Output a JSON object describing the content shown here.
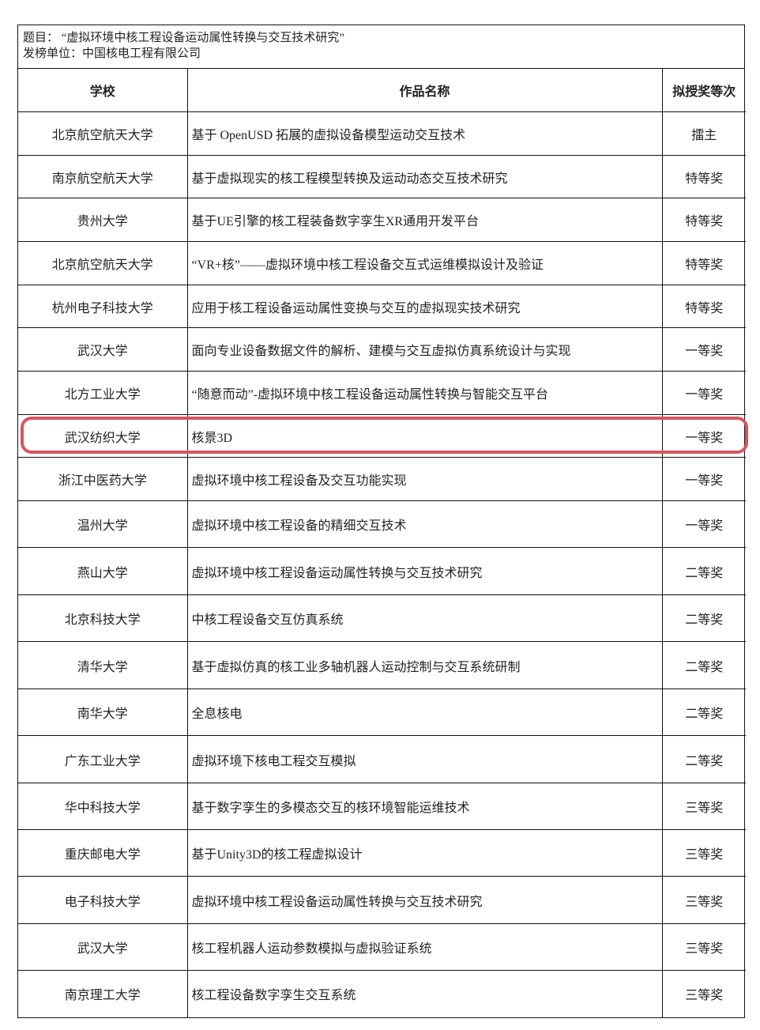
{
  "header": {
    "topic": "题目：  “虚拟环境中核工程设备运动属性转换与交互技术研究”",
    "issuer": "发榜单位：中国核电工程有限公司"
  },
  "columns": [
    "学校",
    "作品名称",
    "拟授奖等次"
  ],
  "highlight_color": "#d9535e",
  "highlighted_row": 7,
  "rows": [
    {
      "school": "北京航空航天大学",
      "work": "基于 OpenUSD 拓展的虚拟设备模型运动交互技术",
      "award": "擂主"
    },
    {
      "school": "南京航空航天大学",
      "work": "基于虚拟现实的核工程模型转换及运动动态交互技术研究",
      "award": "特等奖"
    },
    {
      "school": "贵州大学",
      "work": "基于UE引擎的核工程装备数字孪生XR通用开发平台",
      "award": "特等奖"
    },
    {
      "school": "北京航空航天大学",
      "work": "“VR+核”——虚拟环境中核工程设备交互式运维模拟设计及验证",
      "award": "特等奖"
    },
    {
      "school": "杭州电子科技大学",
      "work": "应用于核工程设备运动属性变换与交互的虚拟现实技术研究",
      "award": "特等奖"
    },
    {
      "school": "武汉大学",
      "work": "面向专业设备数据文件的解析、建模与交互虚拟仿真系统设计与实现",
      "award": "一等奖"
    },
    {
      "school": "北方工业大学",
      "work": "“随意而动”-虚拟环境中核工程设备运动属性转换与智能交互平台",
      "award": "一等奖"
    },
    {
      "school": "武汉纺织大学",
      "work": "核景3D",
      "award": "一等奖"
    },
    {
      "school": "浙江中医药大学",
      "work": "虚拟环境中核工程设备及交互功能实现",
      "award": "一等奖"
    },
    {
      "school": "温州大学",
      "work": "虚拟环境中核工程设备的精细交互技术",
      "award": "一等奖"
    },
    {
      "school": "燕山大学",
      "work": "虚拟环境中核工程设备运动属性转换与交互技术研究",
      "award": "二等奖"
    },
    {
      "school": "北京科技大学",
      "work": "中核工程设备交互仿真系统",
      "award": "二等奖"
    },
    {
      "school": "清华大学",
      "work": "基于虚拟仿真的核工业多轴机器人运动控制与交互系统研制",
      "award": "二等奖"
    },
    {
      "school": "南华大学",
      "work": "全息核电",
      "award": "二等奖"
    },
    {
      "school": "广东工业大学",
      "work": "虚拟环境下核电工程交互模拟",
      "award": "二等奖"
    },
    {
      "school": "华中科技大学",
      "work": "基于数字孪生的多模态交互的核环境智能运维技术",
      "award": "三等奖"
    },
    {
      "school": "重庆邮电大学",
      "work": "基于Unity3D的核工程虚拟设计",
      "award": "三等奖"
    },
    {
      "school": "电子科技大学",
      "work": "虚拟环境中核工程设备运动属性转换与交互技术研究",
      "award": "三等奖"
    },
    {
      "school": "武汉大学",
      "work": "核工程机器人运动参数模拟与虚拟验证系统",
      "award": "三等奖"
    },
    {
      "school": "南京理工大学",
      "work": "核工程设备数字孪生交互系统",
      "award": "三等奖"
    }
  ]
}
